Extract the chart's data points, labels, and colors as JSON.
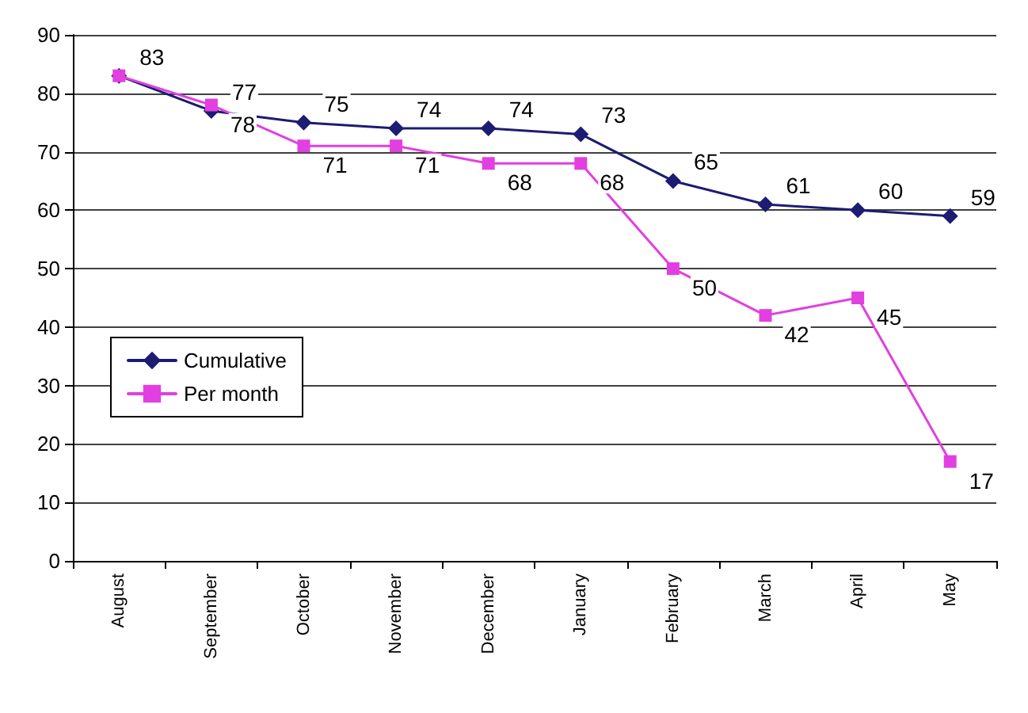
{
  "chart_data": {
    "type": "line",
    "categories": [
      "August",
      "September",
      "October",
      "November",
      "December",
      "January",
      "February",
      "March",
      "April",
      "May"
    ],
    "series": [
      {
        "name": "Cumulative",
        "color": "#1c1c73",
        "marker": "diamond",
        "values": [
          83,
          77,
          75,
          74,
          74,
          73,
          65,
          61,
          60,
          59
        ],
        "value_labels": [
          "83",
          "77",
          "75",
          "74",
          "74",
          "73",
          "65",
          "61",
          "60",
          "59"
        ]
      },
      {
        "name": "Per month",
        "color": "#e23fe0",
        "marker": "square",
        "values": [
          83,
          78,
          71,
          71,
          68,
          68,
          50,
          42,
          45,
          17
        ],
        "value_labels": [
          null,
          "78",
          "71",
          "71",
          "68",
          "68",
          "50",
          "42",
          "45",
          "17"
        ]
      }
    ],
    "ylim": [
      0,
      90
    ],
    "yticks": [
      0,
      10,
      20,
      30,
      40,
      50,
      60,
      70,
      80,
      90
    ],
    "grid": "y",
    "legend": "left"
  }
}
